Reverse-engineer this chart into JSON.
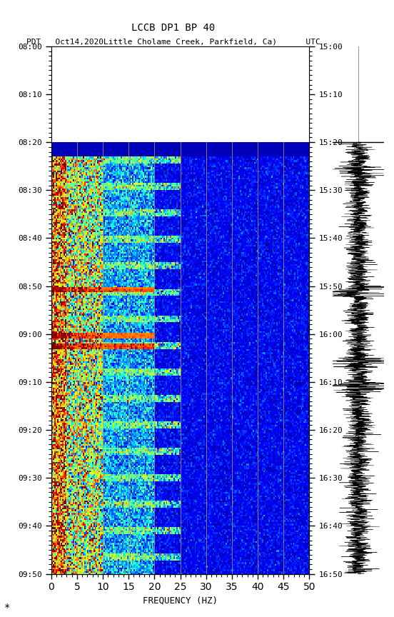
{
  "title_line1": "LCCB DP1 BP 40",
  "title_line2": "PDT   Oct14,2020Little Cholame Creek, Parkfield, Ca)      UTC",
  "xlabel": "FREQUENCY (HZ)",
  "left_yticks": [
    "08:00",
    "08:10",
    "08:20",
    "08:30",
    "08:40",
    "08:50",
    "09:00",
    "09:10",
    "09:20",
    "09:30",
    "09:40",
    "09:50"
  ],
  "right_yticks": [
    "15:00",
    "15:10",
    "15:20",
    "15:30",
    "15:40",
    "15:50",
    "16:00",
    "16:10",
    "16:20",
    "16:30",
    "16:40",
    "16:50"
  ],
  "xmin": 0,
  "xmax": 50,
  "xticks": [
    0,
    5,
    10,
    15,
    20,
    25,
    30,
    35,
    40,
    45,
    50
  ],
  "bg_color": "#ffffff",
  "colormap": "jet",
  "vertical_lines_freq": [
    5,
    10,
    15,
    20,
    25,
    30,
    35,
    40,
    45
  ]
}
